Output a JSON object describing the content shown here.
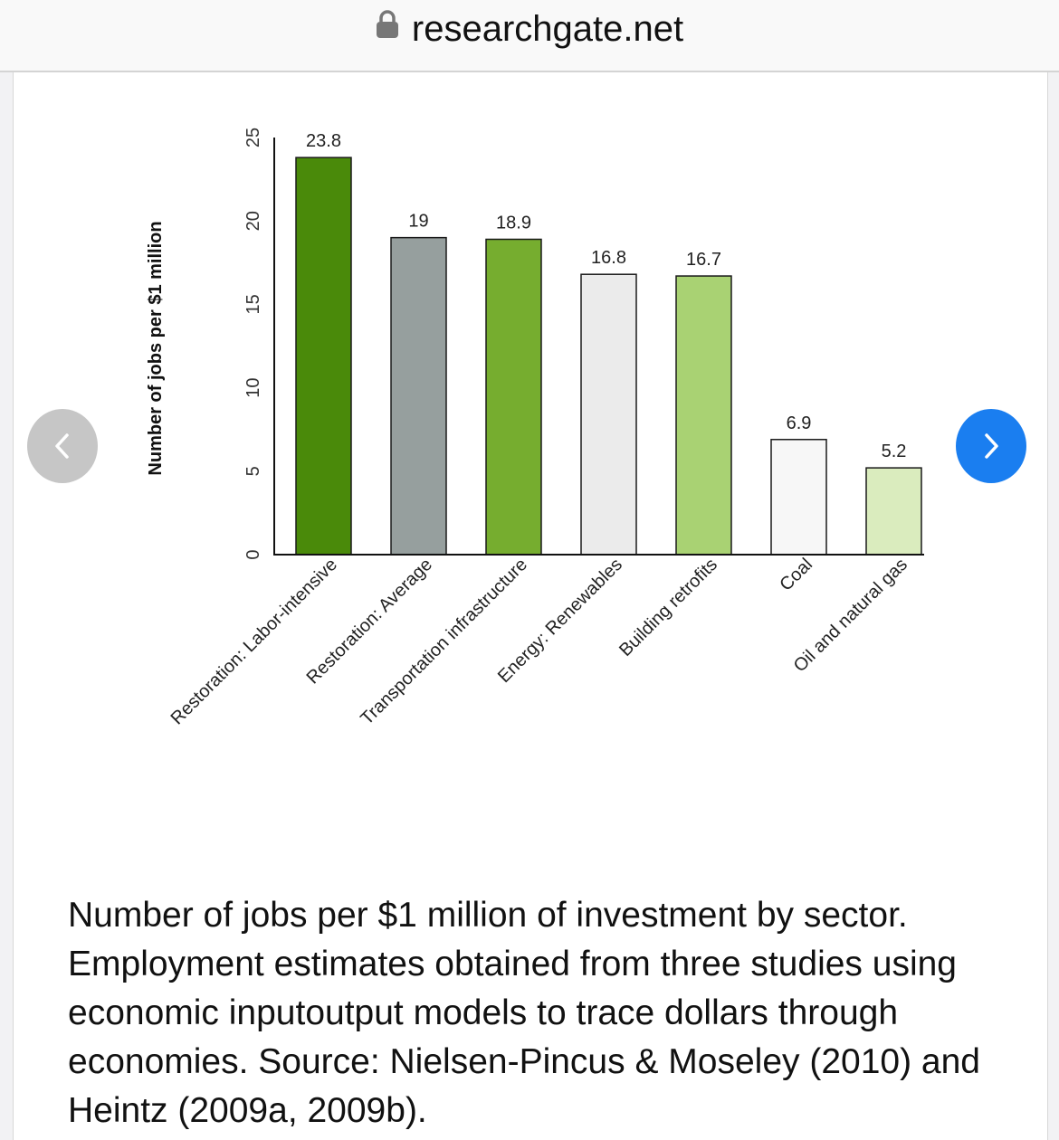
{
  "browser": {
    "url": "researchgate.net",
    "lock_icon": "lock-icon"
  },
  "carousel": {
    "prev_icon": "chevron-left-icon",
    "next_icon": "chevron-right-icon",
    "prev_color": "#c6c6c6",
    "next_color": "#1a7ef0"
  },
  "chart_data": {
    "type": "bar",
    "title": "",
    "xlabel": "",
    "ylabel": "Number of jobs per $1 million",
    "ylim": [
      0,
      25
    ],
    "yticks": [
      "0",
      "5",
      "10",
      "15",
      "20",
      "25"
    ],
    "ytick_values": [
      0,
      5,
      10,
      15,
      20,
      25
    ],
    "grid": false,
    "categories": [
      "Restoration: Labor-intensive",
      "Restoration: Average",
      "Transportation infrastructure",
      "Energy: Renewables",
      "Building retrofits",
      "Coal",
      "Oil and natural gas"
    ],
    "values": [
      23.8,
      19,
      18.9,
      16.8,
      16.7,
      6.9,
      5.2
    ],
    "data_labels": [
      "23.8",
      "19",
      "18.9",
      "16.8",
      "16.7",
      "6.9",
      "5.2"
    ],
    "colors": [
      "#4a8a0a",
      "#969f9e",
      "#76ad2f",
      "#ebebeb",
      "#a9d273",
      "#f7f7f7",
      "#daecbe"
    ]
  },
  "caption": "Number of jobs per $1 million of investment by sector. Employment estimates obtained from three studies using economic inputoutput models to trace dollars through economies. Source: Nielsen-Pincus & Moseley (2010) and Heintz (2009a, 2009b)."
}
